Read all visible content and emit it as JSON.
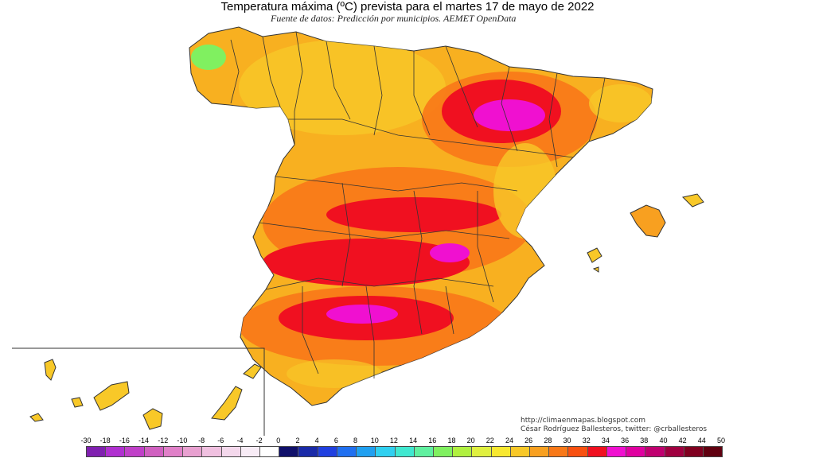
{
  "header": {
    "title": "Temperatura máxima (ºC) prevista para el martes 17 de mayo de 2022",
    "subtitle": "Fuente de datos: Predicción por municipios. AEMET OpenData"
  },
  "credits": {
    "url": "http://climaenmapas.blogspot.com",
    "author": "César Rodríguez Ballesteros, twitter: @crballesteros"
  },
  "legend": {
    "ticks": [
      "-30",
      "-18",
      "-16",
      "-14",
      "-12",
      "-10",
      "-8",
      "-6",
      "-4",
      "-2",
      "0",
      "2",
      "4",
      "6",
      "8",
      "10",
      "12",
      "14",
      "16",
      "18",
      "20",
      "22",
      "24",
      "26",
      "28",
      "30",
      "32",
      "34",
      "36",
      "38",
      "40",
      "42",
      "44",
      "50"
    ],
    "colors": [
      "#8020b0",
      "#b030d0",
      "#c040c8",
      "#d060c0",
      "#e080c8",
      "#e8a0d0",
      "#f0c0e0",
      "#f4d8ec",
      "#f8ecf6",
      "#ffffff",
      "#10106a",
      "#1a2aa8",
      "#2040e0",
      "#2070f0",
      "#20a0f0",
      "#30d0f0",
      "#40e8d0",
      "#60f0a0",
      "#80f060",
      "#b0f040",
      "#e0f040",
      "#f8e830",
      "#f8c828",
      "#f8a020",
      "#f87818",
      "#f85010",
      "#f01020",
      "#f010d0",
      "#e000a0",
      "#c00070",
      "#a00040",
      "#800020",
      "#600010"
    ]
  },
  "map": {
    "colors": {
      "background": "#ffffff",
      "warm_yellow": "#f8c828",
      "orange": "#f8a020",
      "dark_orange": "#f87818",
      "red": "#f01020",
      "magenta": "#f010d0",
      "green": "#80f060",
      "border": "#333333"
    }
  }
}
